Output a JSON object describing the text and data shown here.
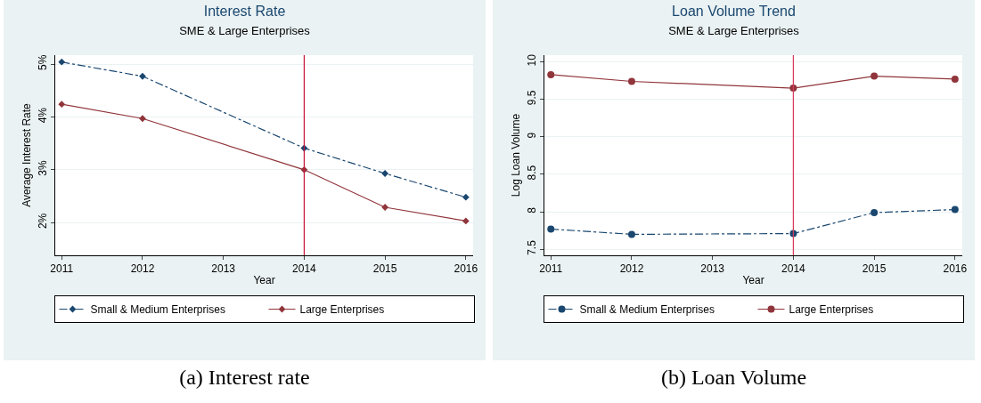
{
  "chart_data": [
    {
      "type": "line",
      "title": "Interest Rate",
      "subtitle": "SME & Large Enterprises",
      "xlabel": "Year",
      "ylabel": "Average Interest Rate",
      "x": [
        2011,
        2012,
        2014,
        2015,
        2016
      ],
      "series": [
        {
          "name": "Small & Medium Enterprises",
          "color": "#1a476f",
          "values": [
            5.04,
            4.77,
            3.41,
            2.93,
            2.48
          ],
          "line_style": "dashed"
        },
        {
          "name": "Large Enterprises",
          "color": "#90353b",
          "values": [
            4.24,
            3.97,
            3.0,
            2.29,
            2.03
          ],
          "line_style": "solid"
        }
      ],
      "xlim": [
        2010.92,
        2016.09
      ],
      "xticks": [
        2011,
        2012,
        2013,
        2014,
        2015,
        2016
      ],
      "ylim": [
        1.38,
        5.17
      ],
      "yticks": [
        {
          "value": 2,
          "label": "2%"
        },
        {
          "value": 3,
          "label": "3%"
        },
        {
          "value": 4,
          "label": "4%"
        },
        {
          "value": 5,
          "label": "5%"
        }
      ],
      "ref_lines": [
        {
          "axis": "x",
          "value": 2014,
          "color": "#c8143c"
        }
      ],
      "grid": "y",
      "legend": "bottom",
      "marker": "diamond",
      "annotations": [
        "(a) Interest rate"
      ]
    },
    {
      "type": "line",
      "title": "Loan Volume Trend",
      "subtitle": "SME & Large Enterprises",
      "xlabel": "Year",
      "ylabel": "Log Loan Volume",
      "x": [
        2011,
        2012,
        2014,
        2015,
        2016
      ],
      "series": [
        {
          "name": "Small & Medium Enterprises",
          "color": "#1a476f",
          "values": [
            7.77,
            7.7,
            7.71,
            7.99,
            8.03
          ],
          "line_style": "dashed"
        },
        {
          "name": "Large Enterprises",
          "color": "#90353b",
          "values": [
            9.83,
            9.74,
            9.65,
            9.81,
            9.77
          ],
          "line_style": "solid"
        }
      ],
      "xlim": [
        2010.92,
        2016.09
      ],
      "xticks": [
        2011,
        2012,
        2013,
        2014,
        2015,
        2016
      ],
      "ylim": [
        7.42,
        10.09
      ],
      "yticks": [
        7.5,
        8,
        8.5,
        9,
        9.5,
        10
      ],
      "ref_lines": [
        {
          "axis": "x",
          "value": 2014,
          "color": "#d83c5a"
        }
      ],
      "grid": "y",
      "legend": "bottom",
      "marker": "circle",
      "annotations": [
        "(b) Loan Volume"
      ]
    }
  ]
}
